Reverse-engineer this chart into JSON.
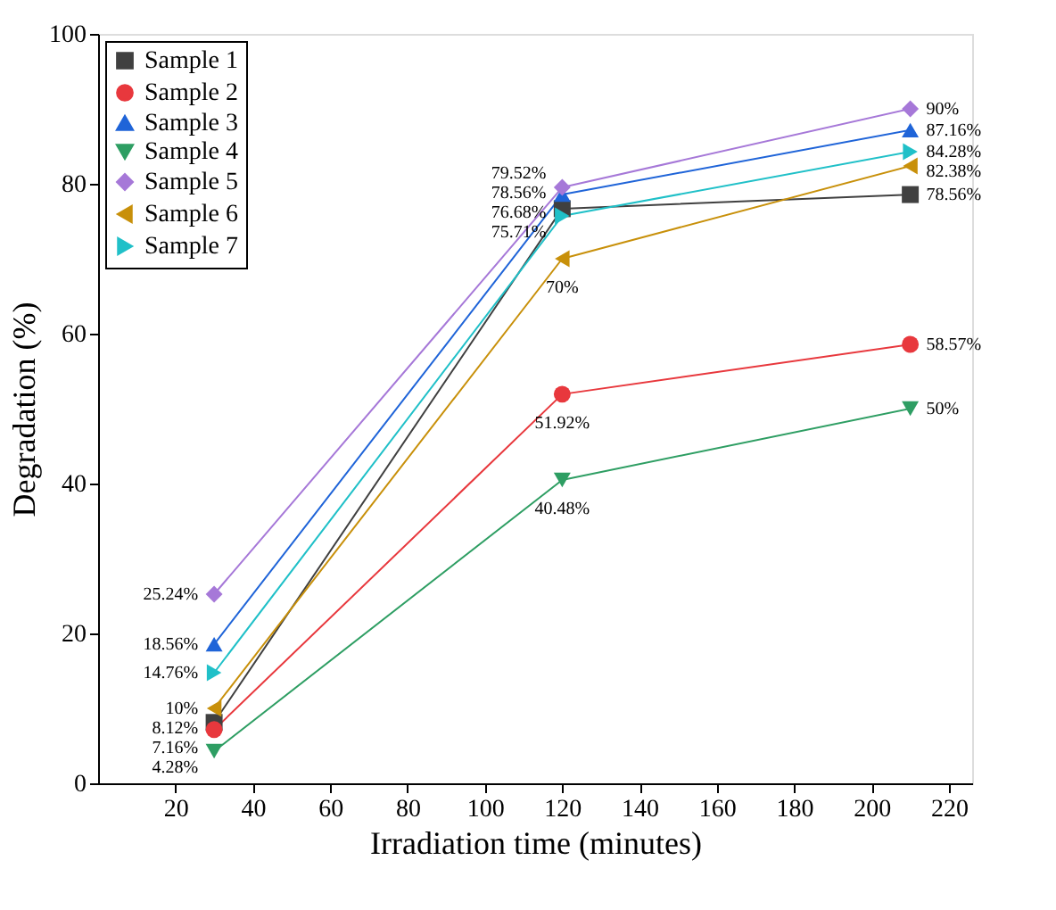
{
  "chart_data": {
    "type": "line",
    "xlabel": "Irradiation time (minutes)",
    "ylabel": "Degradation (%)",
    "x": [
      30,
      120,
      210
    ],
    "xlim": [
      0,
      226
    ],
    "xticks": [
      20,
      40,
      60,
      80,
      100,
      120,
      140,
      160,
      180,
      200,
      220
    ],
    "ylim": [
      0,
      100
    ],
    "yticks": [
      0,
      20,
      40,
      60,
      80,
      100
    ],
    "grid": false,
    "legend": "top left",
    "line_style": "solid",
    "series": [
      {
        "name": "Sample 1",
        "color": "#404040",
        "marker": "square",
        "values": [
          8.12,
          76.68,
          78.56
        ],
        "value_labels": [
          "8.12%",
          "76.68%",
          "78.56%"
        ]
      },
      {
        "name": "Sample 2",
        "color": "#e8383d",
        "marker": "circle",
        "values": [
          7.16,
          51.92,
          58.57
        ],
        "value_labels": [
          "7.16%",
          "51.92%",
          "58.57%"
        ]
      },
      {
        "name": "Sample 3",
        "color": "#1f64d8",
        "marker": "triangle-up",
        "values": [
          18.56,
          78.56,
          87.16
        ],
        "value_labels": [
          "18.56%",
          "78.56%",
          "87.16%"
        ]
      },
      {
        "name": "Sample 4",
        "color": "#2e9e63",
        "marker": "triangle-down",
        "values": [
          4.28,
          40.48,
          50
        ],
        "value_labels": [
          "4.28%",
          "40.48%",
          "50%"
        ]
      },
      {
        "name": "Sample 5",
        "color": "#a678d8",
        "marker": "diamond",
        "values": [
          25.24,
          79.52,
          90
        ],
        "value_labels": [
          "25.24%",
          "79.52%",
          "90%"
        ]
      },
      {
        "name": "Sample 6",
        "color": "#c8900a",
        "marker": "triangle-left",
        "values": [
          10,
          70,
          82.38
        ],
        "value_labels": [
          "10%",
          "70%",
          "82.38%"
        ]
      },
      {
        "name": "Sample 7",
        "color": "#20c0c8",
        "marker": "triangle-right",
        "values": [
          14.76,
          75.71,
          84.28
        ],
        "value_labels": [
          "14.76%",
          "75.71%",
          "84.28%"
        ]
      }
    ]
  }
}
